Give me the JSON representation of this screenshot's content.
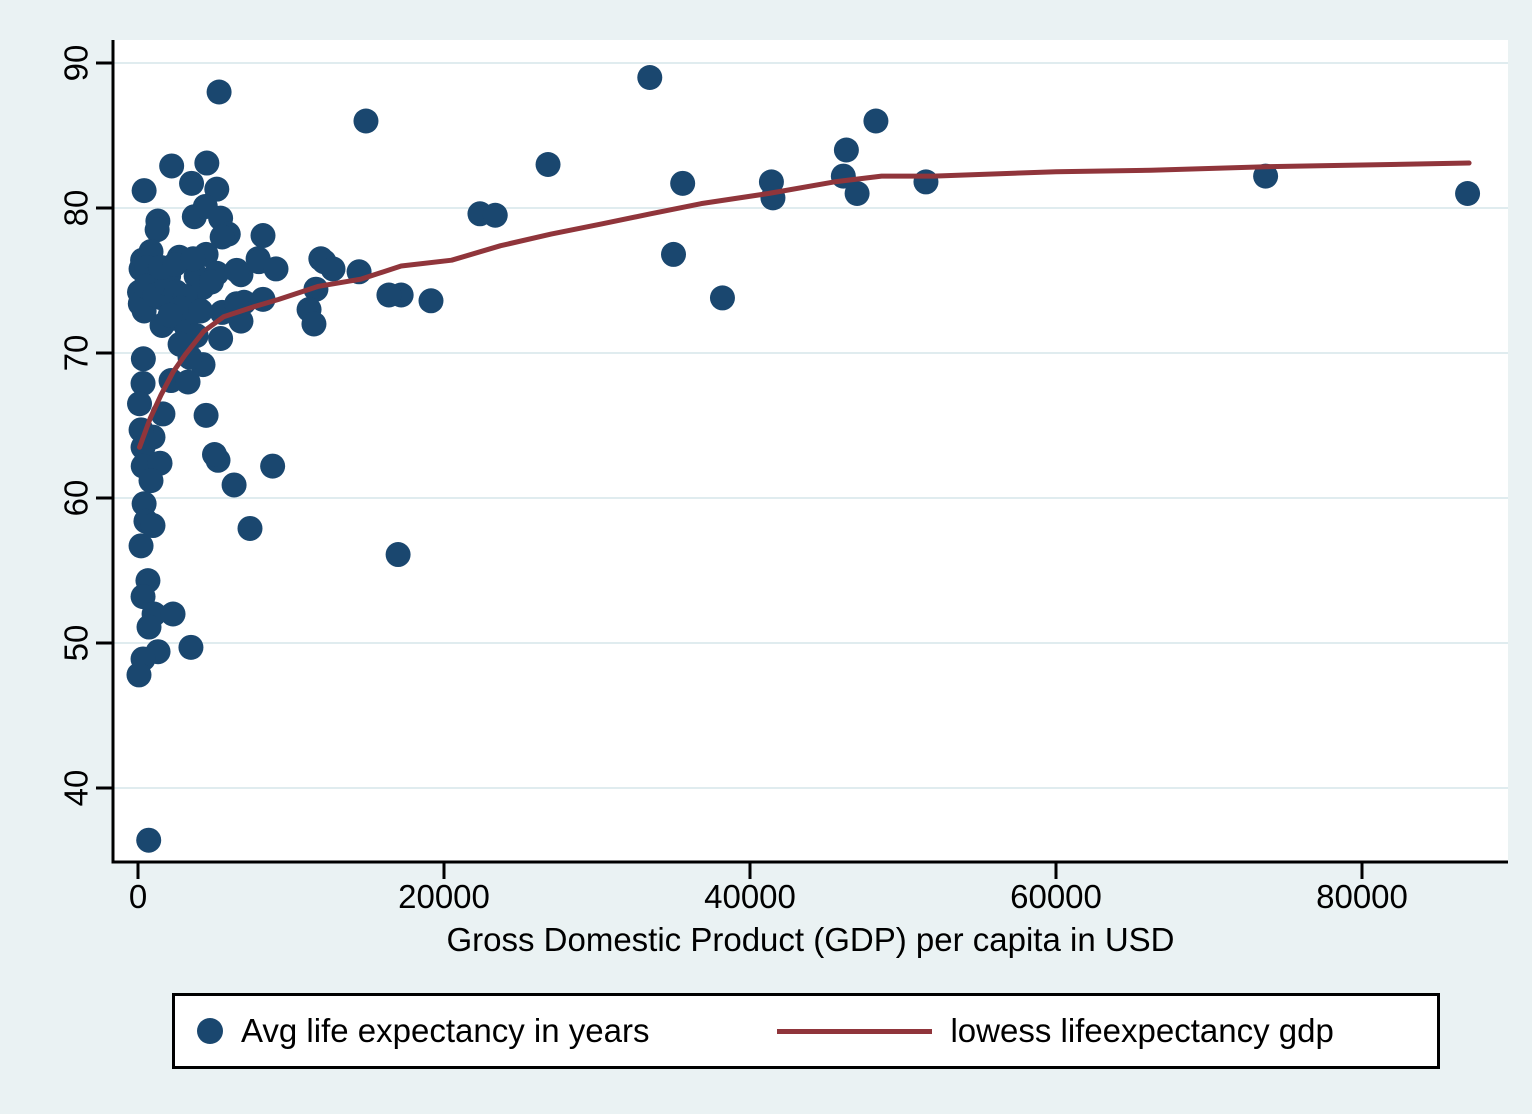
{
  "colors": {
    "background": "#eaf2f3",
    "plot_background": "#ffffff",
    "scatter_marker": "#1a476f",
    "lowess_line": "#90353b",
    "gridline": "#e0ecef",
    "axis": "#000000",
    "legend_background": "#ffffff",
    "legend_border": "#000000"
  },
  "legend": {
    "items": [
      {
        "marker": "circle-icon",
        "label": "Avg life expectancy in years"
      },
      {
        "marker": "line-icon",
        "label": "lowess lifeexpectancy gdp"
      }
    ]
  },
  "chart_data": {
    "type": "scatter",
    "title": "",
    "xlabel": "Gross Domestic Product (GDP) per capita in USD",
    "ylabel": "",
    "xlim": [
      0,
      89600
    ],
    "ylim": [
      34.8,
      91.6
    ],
    "x_ticks": [
      0,
      20000,
      40000,
      60000,
      80000
    ],
    "y_ticks": [
      40,
      50,
      60,
      70,
      80,
      90
    ],
    "grid": "horizontal",
    "legend_position": "bottom",
    "series": [
      {
        "name": "Avg life expectancy in years",
        "type": "scatter",
        "color": "#1a476f",
        "points": [
          [
            5300,
            88
          ],
          [
            33450,
            89
          ],
          [
            14900,
            86
          ],
          [
            48230,
            86
          ],
          [
            46300,
            84
          ],
          [
            26800,
            83
          ],
          [
            2200,
            82.9
          ],
          [
            4500,
            83.1
          ],
          [
            400,
            81.2
          ],
          [
            3500,
            81.7
          ],
          [
            5150,
            81.3
          ],
          [
            46100,
            82.2
          ],
          [
            47000,
            81
          ],
          [
            41400,
            81.8
          ],
          [
            41500,
            80.7
          ],
          [
            51500,
            81.8
          ],
          [
            73700,
            82.2
          ],
          [
            86900,
            81
          ],
          [
            35600,
            81.7
          ],
          [
            22350,
            79.6
          ],
          [
            23350,
            79.5
          ],
          [
            35000,
            76.8
          ],
          [
            38200,
            73.8
          ],
          [
            19150,
            73.6
          ],
          [
            17200,
            74
          ],
          [
            16400,
            74
          ],
          [
            14450,
            75.6
          ],
          [
            12160,
            76.3
          ],
          [
            11950,
            76.5
          ],
          [
            12745,
            75.8
          ],
          [
            11630,
            74.4
          ],
          [
            11180,
            73
          ],
          [
            11500,
            72
          ],
          [
            1300,
            79.1
          ],
          [
            3680,
            79.4
          ],
          [
            4400,
            80.1
          ],
          [
            5400,
            79.3
          ],
          [
            5900,
            78.2
          ],
          [
            8170,
            78.1
          ],
          [
            7850,
            76.5
          ],
          [
            7900,
            76.3
          ],
          [
            6730,
            75.4
          ],
          [
            9020,
            75.8
          ],
          [
            6930,
            73.5
          ],
          [
            8170,
            73.7
          ],
          [
            6730,
            72.2
          ],
          [
            8800,
            62.2
          ],
          [
            17000,
            56.1
          ],
          [
            5230,
            62.6
          ],
          [
            6280,
            60.9
          ],
          [
            7320,
            57.9
          ],
          [
            4450,
            65.7
          ],
          [
            5000,
            63
          ],
          [
            3460,
            49.7
          ],
          [
            700,
            36.4
          ],
          [
            4250,
            69.2
          ],
          [
            3400,
            69.7
          ],
          [
            2160,
            68.1
          ],
          [
            3270,
            68
          ],
          [
            1630,
            65.8
          ],
          [
            1250,
            78.5
          ],
          [
            850,
            77
          ],
          [
            2700,
            76.6
          ],
          [
            4450,
            76.8
          ],
          [
            5500,
            78
          ],
          [
            200,
            75.8
          ],
          [
            2000,
            75.3
          ],
          [
            3800,
            75.3
          ],
          [
            5150,
            75.5
          ],
          [
            6450,
            75.7
          ],
          [
            100,
            74.2
          ],
          [
            1570,
            73.8
          ],
          [
            400,
            72.9
          ],
          [
            2350,
            72.4
          ],
          [
            4200,
            74.5
          ],
          [
            5500,
            72.8
          ],
          [
            6450,
            73.4
          ],
          [
            3200,
            71.7
          ],
          [
            3800,
            71.2
          ],
          [
            1570,
            71.9
          ],
          [
            5400,
            71
          ],
          [
            300,
            76.4
          ],
          [
            600,
            75.9
          ],
          [
            900,
            75.1
          ],
          [
            150,
            73.4
          ],
          [
            500,
            74.6
          ],
          [
            1100,
            74
          ],
          [
            1900,
            74.8
          ],
          [
            2500,
            74.2
          ],
          [
            3100,
            73.9
          ],
          [
            2800,
            73.1
          ],
          [
            2100,
            72.6
          ],
          [
            1500,
            75.9
          ],
          [
            2400,
            76.1
          ],
          [
            3600,
            76.5
          ],
          [
            4800,
            74.9
          ],
          [
            4100,
            72.9
          ],
          [
            350,
            69.6
          ],
          [
            2750,
            70.6
          ],
          [
            330,
            67.9
          ],
          [
            100,
            66.5
          ],
          [
            980,
            64.2
          ],
          [
            200,
            64.7
          ],
          [
            330,
            63.5
          ],
          [
            340,
            62.2
          ],
          [
            1440,
            62.4
          ],
          [
            850,
            61.2
          ],
          [
            400,
            59.6
          ],
          [
            520,
            58.4
          ],
          [
            980,
            58.1
          ],
          [
            200,
            56.7
          ],
          [
            650,
            54.3
          ],
          [
            330,
            53.2
          ],
          [
            1050,
            52
          ],
          [
            2290,
            52
          ],
          [
            720,
            51.1
          ],
          [
            1310,
            49.4
          ],
          [
            330,
            48.9
          ],
          [
            65,
            47.8
          ]
        ]
      },
      {
        "name": "lowess lifeexpectancy gdp",
        "type": "line",
        "color": "#90353b",
        "points": [
          [
            100,
            63.5
          ],
          [
            800,
            65.5
          ],
          [
            1500,
            67.1
          ],
          [
            2300,
            68.7
          ],
          [
            3100,
            69.9
          ],
          [
            4300,
            71.5
          ],
          [
            5600,
            72.5
          ],
          [
            7600,
            73.2
          ],
          [
            9200,
            73.7
          ],
          [
            11800,
            74.6
          ],
          [
            14600,
            75.1
          ],
          [
            17200,
            76.0
          ],
          [
            20500,
            76.4
          ],
          [
            23700,
            77.4
          ],
          [
            27000,
            78.2
          ],
          [
            30300,
            78.9
          ],
          [
            33500,
            79.6
          ],
          [
            36800,
            80.3
          ],
          [
            41200,
            81.0
          ],
          [
            45500,
            81.8
          ],
          [
            48600,
            82.2
          ],
          [
            52000,
            82.2
          ],
          [
            60000,
            82.5
          ],
          [
            66200,
            82.6
          ],
          [
            74000,
            82.85
          ],
          [
            87000,
            83.1
          ]
        ]
      }
    ]
  }
}
